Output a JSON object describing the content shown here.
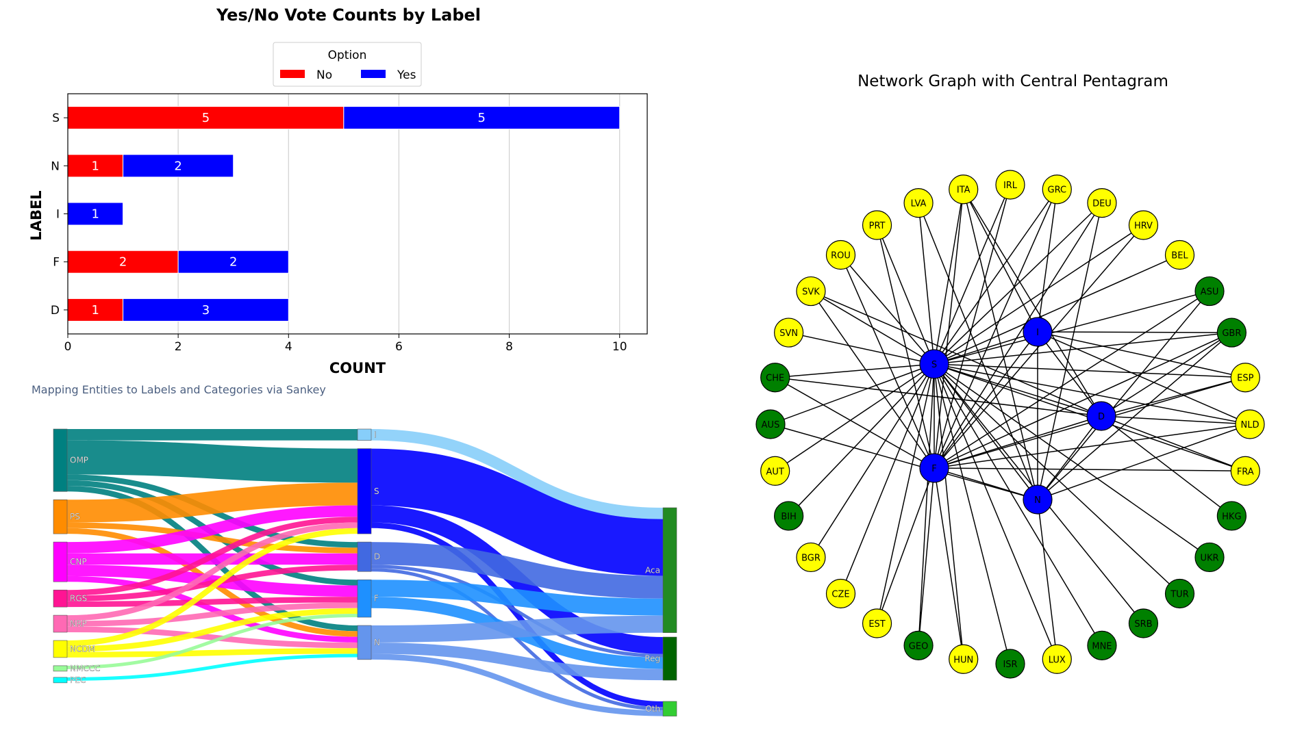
{
  "colors": {
    "no": "#ff0000",
    "yes": "#0000ff",
    "node_label": "#0000ff",
    "node_country_yellow": "#ffff00",
    "node_country_green": "#008000",
    "sankey_title": "#4b5f80"
  },
  "chart_data": [
    {
      "type": "bar",
      "orientation": "horizontal",
      "stacked": true,
      "title": "Yes/No Vote Counts by Label",
      "xlabel": "COUNT",
      "ylabel": "LABEL",
      "categories": [
        "S",
        "N",
        "I",
        "F",
        "D"
      ],
      "series": [
        {
          "name": "No",
          "values": [
            5,
            1,
            0,
            2,
            1
          ]
        },
        {
          "name": "Yes",
          "values": [
            5,
            2,
            1,
            2,
            3
          ]
        }
      ],
      "xlim": [
        0,
        10.5
      ],
      "xticks": [
        0,
        2,
        4,
        6,
        8,
        10
      ],
      "grid": "vertical",
      "legend": {
        "title": "Option",
        "placement": "top-center"
      }
    },
    {
      "type": "sankey",
      "title": "Mapping Entities to Labels and Categories via Sankey",
      "nodes": [
        {
          "id": "OMP",
          "color": "#008080",
          "column": 0
        },
        {
          "id": "PS",
          "color": "#ff8c00",
          "column": 0
        },
        {
          "id": "CNP",
          "color": "#ff00ff",
          "column": 0
        },
        {
          "id": "RGS",
          "color": "#ff1493",
          "column": 0
        },
        {
          "id": "NRP",
          "color": "#ff69b4",
          "column": 0
        },
        {
          "id": "NCDM",
          "color": "#ffff00",
          "column": 0
        },
        {
          "id": "NMCCC",
          "color": "#98fb98",
          "column": 0
        },
        {
          "id": "PEC",
          "color": "#00ffff",
          "column": 0
        },
        {
          "id": "I",
          "color": "#87cefa",
          "column": 1
        },
        {
          "id": "S",
          "color": "#0000ff",
          "column": 1
        },
        {
          "id": "D",
          "color": "#4169e1",
          "column": 1
        },
        {
          "id": "F",
          "color": "#1e90ff",
          "column": 1
        },
        {
          "id": "N",
          "color": "#6495ed",
          "column": 1
        },
        {
          "id": "Aca",
          "color": "#228b22",
          "column": 2
        },
        {
          "id": "Reg",
          "color": "#006400",
          "column": 2
        },
        {
          "id": "Oth",
          "color": "#32cd32",
          "column": 2
        }
      ],
      "links": [
        {
          "source": "OMP",
          "target": "I",
          "value": 1
        },
        {
          "source": "OMP",
          "target": "S",
          "value": 3
        },
        {
          "source": "OMP",
          "target": "D",
          "value": 0.5
        },
        {
          "source": "OMP",
          "target": "F",
          "value": 0.5
        },
        {
          "source": "OMP",
          "target": "N",
          "value": 0.5
        },
        {
          "source": "PS",
          "target": "S",
          "value": 2
        },
        {
          "source": "PS",
          "target": "D",
          "value": 0.5
        },
        {
          "source": "PS",
          "target": "N",
          "value": 0.5
        },
        {
          "source": "CNP",
          "target": "S",
          "value": 1
        },
        {
          "source": "CNP",
          "target": "D",
          "value": 1
        },
        {
          "source": "CNP",
          "target": "F",
          "value": 1
        },
        {
          "source": "CNP",
          "target": "N",
          "value": 0.5
        },
        {
          "source": "RGS",
          "target": "S",
          "value": 0.5
        },
        {
          "source": "RGS",
          "target": "D",
          "value": 0.5
        },
        {
          "source": "RGS",
          "target": "F",
          "value": 0.5
        },
        {
          "source": "NRP",
          "target": "S",
          "value": 0.5
        },
        {
          "source": "NRP",
          "target": "F",
          "value": 0.5
        },
        {
          "source": "NRP",
          "target": "N",
          "value": 0.5
        },
        {
          "source": "NCDM",
          "target": "S",
          "value": 0.5
        },
        {
          "source": "NCDM",
          "target": "F",
          "value": 0.5
        },
        {
          "source": "NCDM",
          "target": "N",
          "value": 0.5
        },
        {
          "source": "NMCCC",
          "target": "F",
          "value": 0.3
        },
        {
          "source": "PEC",
          "target": "N",
          "value": 0.3
        },
        {
          "source": "I",
          "target": "Aca",
          "value": 1
        },
        {
          "source": "S",
          "target": "Aca",
          "value": 5
        },
        {
          "source": "S",
          "target": "Reg",
          "value": 1.5
        },
        {
          "source": "S",
          "target": "Oth",
          "value": 0.5
        },
        {
          "source": "D",
          "target": "Aca",
          "value": 2
        },
        {
          "source": "D",
          "target": "Reg",
          "value": 0.3
        },
        {
          "source": "D",
          "target": "Oth",
          "value": 0.3
        },
        {
          "source": "F",
          "target": "Aca",
          "value": 1.5
        },
        {
          "source": "F",
          "target": "Reg",
          "value": 1
        },
        {
          "source": "N",
          "target": "Aca",
          "value": 1.5
        },
        {
          "source": "N",
          "target": "Reg",
          "value": 1
        },
        {
          "source": "N",
          "target": "Oth",
          "value": 0.5
        }
      ]
    },
    {
      "type": "network",
      "title": "Network Graph with Central Pentagram",
      "center_nodes": [
        "I",
        "S",
        "D",
        "F",
        "N"
      ],
      "outer_nodes": [
        {
          "id": "NLD",
          "group": "yellow"
        },
        {
          "id": "ESP",
          "group": "yellow"
        },
        {
          "id": "GBR",
          "group": "green"
        },
        {
          "id": "ASU",
          "group": "green"
        },
        {
          "id": "BEL",
          "group": "yellow"
        },
        {
          "id": "HRV",
          "group": "yellow"
        },
        {
          "id": "DEU",
          "group": "yellow"
        },
        {
          "id": "GRC",
          "group": "yellow"
        },
        {
          "id": "IRL",
          "group": "yellow"
        },
        {
          "id": "ITA",
          "group": "yellow"
        },
        {
          "id": "LVA",
          "group": "yellow"
        },
        {
          "id": "PRT",
          "group": "yellow"
        },
        {
          "id": "ROU",
          "group": "yellow"
        },
        {
          "id": "SVK",
          "group": "yellow"
        },
        {
          "id": "SVN",
          "group": "yellow"
        },
        {
          "id": "CHE",
          "group": "green"
        },
        {
          "id": "AUS",
          "group": "green"
        },
        {
          "id": "AUT",
          "group": "yellow"
        },
        {
          "id": "BIH",
          "group": "green"
        },
        {
          "id": "BGR",
          "group": "yellow"
        },
        {
          "id": "CZE",
          "group": "yellow"
        },
        {
          "id": "EST",
          "group": "yellow"
        },
        {
          "id": "GEO",
          "group": "green"
        },
        {
          "id": "HUN",
          "group": "yellow"
        },
        {
          "id": "ISR",
          "group": "green"
        },
        {
          "id": "LUX",
          "group": "yellow"
        },
        {
          "id": "MNE",
          "group": "green"
        },
        {
          "id": "SRB",
          "group": "green"
        },
        {
          "id": "TUR",
          "group": "green"
        },
        {
          "id": "UKR",
          "group": "green"
        },
        {
          "id": "HKG",
          "group": "green"
        },
        {
          "id": "FRA",
          "group": "yellow"
        }
      ],
      "edges": [
        [
          "I",
          "S"
        ],
        [
          "I",
          "D"
        ],
        [
          "I",
          "F"
        ],
        [
          "I",
          "N"
        ],
        [
          "S",
          "D"
        ],
        [
          "S",
          "F"
        ],
        [
          "S",
          "N"
        ],
        [
          "D",
          "F"
        ],
        [
          "D",
          "N"
        ],
        [
          "F",
          "N"
        ],
        [
          "S",
          "NLD"
        ],
        [
          "S",
          "ESP"
        ],
        [
          "S",
          "GBR"
        ],
        [
          "S",
          "ASU"
        ],
        [
          "S",
          "BEL"
        ],
        [
          "S",
          "HRV"
        ],
        [
          "S",
          "DEU"
        ],
        [
          "S",
          "GRC"
        ],
        [
          "S",
          "IRL"
        ],
        [
          "S",
          "ITA"
        ],
        [
          "S",
          "LVA"
        ],
        [
          "S",
          "PRT"
        ],
        [
          "S",
          "ROU"
        ],
        [
          "S",
          "SVK"
        ],
        [
          "S",
          "SVN"
        ],
        [
          "S",
          "CHE"
        ],
        [
          "S",
          "AUS"
        ],
        [
          "S",
          "AUT"
        ],
        [
          "S",
          "BIH"
        ],
        [
          "S",
          "BGR"
        ],
        [
          "S",
          "CZE"
        ],
        [
          "S",
          "EST"
        ],
        [
          "S",
          "GEO"
        ],
        [
          "S",
          "HUN"
        ],
        [
          "S",
          "ISR"
        ],
        [
          "S",
          "LUX"
        ],
        [
          "S",
          "MNE"
        ],
        [
          "S",
          "SRB"
        ],
        [
          "S",
          "TUR"
        ],
        [
          "S",
          "UKR"
        ],
        [
          "S",
          "FRA"
        ],
        [
          "F",
          "ITA"
        ],
        [
          "F",
          "IRL"
        ],
        [
          "F",
          "GRC"
        ],
        [
          "F",
          "DEU"
        ],
        [
          "F",
          "HRV"
        ],
        [
          "F",
          "ASU"
        ],
        [
          "F",
          "GBR"
        ],
        [
          "F",
          "ESP"
        ],
        [
          "F",
          "NLD"
        ],
        [
          "F",
          "FRA"
        ],
        [
          "F",
          "PRT"
        ],
        [
          "F",
          "ROU"
        ],
        [
          "F",
          "SVK"
        ],
        [
          "F",
          "CHE"
        ],
        [
          "F",
          "EST"
        ],
        [
          "F",
          "GEO"
        ],
        [
          "F",
          "HUN"
        ],
        [
          "D",
          "GBR"
        ],
        [
          "D",
          "ESP"
        ],
        [
          "D",
          "NLD"
        ],
        [
          "D",
          "FRA"
        ],
        [
          "D",
          "HKG"
        ],
        [
          "D",
          "ITA"
        ],
        [
          "D",
          "SVK"
        ],
        [
          "D",
          "CHE"
        ],
        [
          "N",
          "ITA"
        ],
        [
          "N",
          "LVA"
        ],
        [
          "N",
          "DEU"
        ],
        [
          "N",
          "GBR"
        ],
        [
          "N",
          "ASU"
        ],
        [
          "N",
          "NLD"
        ],
        [
          "N",
          "AUS"
        ],
        [
          "N",
          "LUX"
        ],
        [
          "I",
          "ITA"
        ],
        [
          "I",
          "GRC"
        ],
        [
          "I",
          "ESP"
        ],
        [
          "I",
          "GBR"
        ],
        [
          "I",
          "NLD"
        ]
      ]
    }
  ]
}
